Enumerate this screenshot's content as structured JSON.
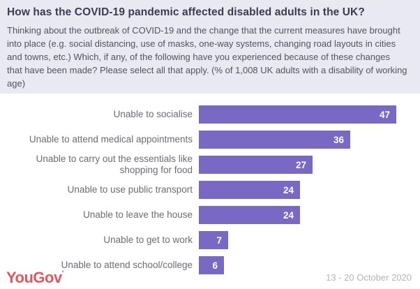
{
  "header": {
    "title": "How has the COVID-19 pandemic affected disabled adults in the UK?",
    "subtitle": "Thinking about the outbreak of COVID-19 and the change that the current measures have brought into place (e.g. social distancing, use of masks, one-way systems, changing road layouts in cities and towns, etc.) Which, if any, of the following have you experienced because of these changes that have been made? Please select all that apply. (% of 1,008 UK adults with a disability of working age)"
  },
  "chart_data": {
    "type": "bar",
    "orientation": "horizontal",
    "title": "How has the COVID-19 pandemic affected disabled adults in the UK?",
    "categories": [
      "Unable to socialise",
      "Unable to attend medical appointments",
      "Unable to carry out the essentials like shopping for food",
      "Unable to use public transport",
      "Unable to leave the house",
      "Unable to get to work",
      "Unable to attend school/college"
    ],
    "values": [
      47,
      36,
      27,
      24,
      24,
      7,
      6
    ],
    "unit": "%",
    "xlim": [
      0,
      47
    ],
    "grid": false,
    "legend": false,
    "bar_color": "#7a68c5",
    "value_label_color": "#ffffff"
  },
  "footer": {
    "logo_text": "YouGov",
    "logo_mark": "'",
    "logo_color": "#dc5a5f",
    "date_range": "13 - 20 October 2020"
  },
  "colors": {
    "header_background": "#e9e9f2",
    "chart_background": "#ffffff",
    "title_text": "#3b3b54",
    "subtitle_text": "#53535f",
    "category_label_text": "#6b6b75",
    "date_text": "#b4b4bb"
  }
}
